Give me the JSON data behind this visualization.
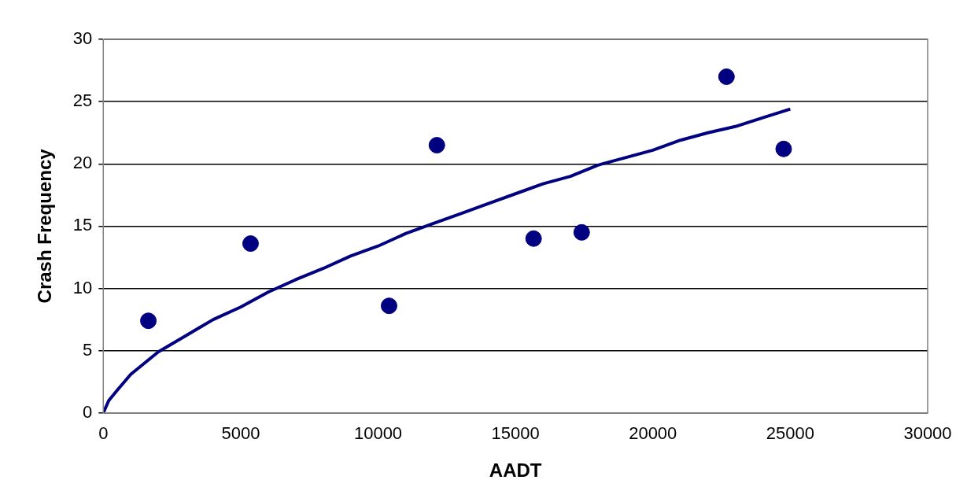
{
  "chart_data": {
    "type": "scatter",
    "xlabel": "AADT",
    "ylabel": "Crash Frequency",
    "xlim": [
      0,
      30000
    ],
    "xticks": [
      0,
      5000,
      10000,
      15000,
      20000,
      25000,
      30000
    ],
    "ylim": [
      0,
      30
    ],
    "yticks": [
      0,
      5,
      10,
      15,
      20,
      25,
      30
    ],
    "grid": "y",
    "legend": false,
    "marker": "circle",
    "series": [
      {
        "type": "scatter",
        "color": "#000080",
        "x": [
          1640,
          5360,
          10400,
          12140,
          15660,
          17410,
          22680,
          24760
        ],
        "values": [
          7.4,
          13.6,
          8.6,
          21.5,
          14.0,
          14.5,
          27.0,
          21.2
        ]
      },
      {
        "type": "line",
        "color": "#000080",
        "marker": "none",
        "line_style": "solid",
        "x": [
          0,
          200,
          500,
          1000,
          2000,
          3000,
          4000,
          5000,
          6000,
          7000,
          8000,
          9000,
          10000,
          11000,
          12000,
          13000,
          14000,
          15000,
          16000,
          17000,
          18000,
          19000,
          20000,
          21000,
          22000,
          23000,
          24000,
          25000
        ],
        "values": [
          0,
          1.0,
          1.8,
          3.1,
          4.9,
          6.2,
          7.5,
          8.5,
          9.7,
          10.7,
          11.6,
          12.6,
          13.4,
          14.4,
          15.2,
          16.0,
          16.8,
          17.6,
          18.4,
          19.0,
          19.9,
          20.5,
          21.1,
          21.9,
          22.5,
          23.0,
          23.7,
          24.4
        ]
      }
    ]
  }
}
